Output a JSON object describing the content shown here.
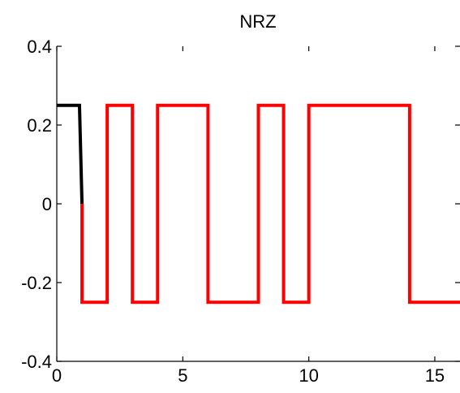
{
  "chart_data": {
    "type": "line",
    "title": "NRZ",
    "xlabel": "",
    "ylabel": "",
    "xlim": [
      0,
      16
    ],
    "ylim": [
      -0.4,
      0.4
    ],
    "x_ticks": [
      0,
      5,
      10,
      15
    ],
    "x_tick_labels": [
      "0",
      "5",
      "10",
      "15"
    ],
    "y_ticks": [
      0.4,
      0.2,
      0,
      -0.2,
      -0.4
    ],
    "y_tick_labels": [
      "0.4",
      "0.2",
      "0",
      "-0.2",
      "-0.4"
    ],
    "grid": false,
    "box": "left-bottom",
    "series": [
      {
        "color": "#ff0000",
        "x": [
          1.0,
          1.0,
          2.0,
          2.0,
          3.0,
          3.0,
          4.0,
          4.0,
          6.0,
          6.0,
          8.0,
          8.0,
          9.0,
          9.0,
          10.0,
          10.0,
          14.0,
          14.0,
          16.0
        ],
        "y": [
          0.0,
          -0.25,
          -0.25,
          0.25,
          0.25,
          -0.25,
          -0.25,
          0.25,
          0.25,
          -0.25,
          -0.25,
          0.25,
          0.25,
          -0.25,
          -0.25,
          0.25,
          0.25,
          -0.25,
          -0.25
        ]
      },
      {
        "color": "#000000",
        "x": [
          0.0,
          0.9,
          1.0
        ],
        "y": [
          0.25,
          0.25,
          0.0
        ]
      }
    ]
  }
}
